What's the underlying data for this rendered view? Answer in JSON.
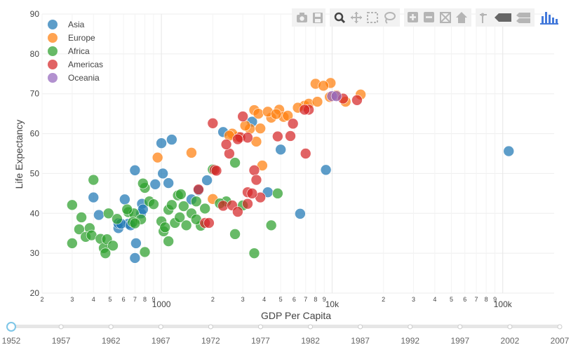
{
  "chart_data": {
    "type": "scatter",
    "xlabel": "GDP Per Capita",
    "ylabel": "Life Expectancy",
    "xscale": "log",
    "xlim": [
      200,
      200000
    ],
    "ylim": [
      20,
      90
    ],
    "grid": true,
    "legend_position": "top-left",
    "y_ticks": [
      "20",
      "30",
      "40",
      "50",
      "60",
      "70",
      "80",
      "90"
    ],
    "x_major_ticks": [
      {
        "value": 1000,
        "label": "1000"
      },
      {
        "value": 10000,
        "label": "10k"
      },
      {
        "value": 100000,
        "label": "100k"
      }
    ],
    "x_minor_ticks": [
      {
        "value": 200,
        "label": "2"
      },
      {
        "value": 300,
        "label": "3"
      },
      {
        "value": 400,
        "label": "4"
      },
      {
        "value": 500,
        "label": "5"
      },
      {
        "value": 600,
        "label": "6"
      },
      {
        "value": 700,
        "label": "7"
      },
      {
        "value": 800,
        "label": "8"
      },
      {
        "value": 900,
        "label": "9"
      },
      {
        "value": 2000,
        "label": "2"
      },
      {
        "value": 3000,
        "label": "3"
      },
      {
        "value": 4000,
        "label": "4"
      },
      {
        "value": 5000,
        "label": "5"
      },
      {
        "value": 6000,
        "label": "6"
      },
      {
        "value": 7000,
        "label": "7"
      },
      {
        "value": 8000,
        "label": "8"
      },
      {
        "value": 9000,
        "label": "9"
      },
      {
        "value": 20000,
        "label": "2"
      },
      {
        "value": 30000,
        "label": "3"
      },
      {
        "value": 40000,
        "label": "4"
      },
      {
        "value": 50000,
        "label": "5"
      },
      {
        "value": 60000,
        "label": "6"
      },
      {
        "value": 70000,
        "label": "7"
      },
      {
        "value": 80000,
        "label": "8"
      },
      {
        "value": 90000,
        "label": "9"
      }
    ],
    "series": [
      {
        "name": "Asia",
        "color": "#1f77b4",
        "points": [
          [
            108382,
            55.6
          ],
          [
            9200,
            50.9
          ],
          [
            3400,
            63.0
          ],
          [
            6500,
            39.9
          ],
          [
            4200,
            45.3
          ],
          [
            5000,
            56.0
          ],
          [
            2300,
            60.4
          ],
          [
            1850,
            48.3
          ],
          [
            1650,
            45.8
          ],
          [
            1500,
            43.5
          ],
          [
            1150,
            58.5
          ],
          [
            1000,
            57.6
          ],
          [
            1020,
            50.0
          ],
          [
            920,
            47.3
          ],
          [
            1100,
            47.6
          ],
          [
            700,
            50.8
          ],
          [
            610,
            43.5
          ],
          [
            760,
            40.0
          ],
          [
            560,
            36.3
          ],
          [
            560,
            37.5
          ],
          [
            430,
            39.6
          ],
          [
            400,
            44.0
          ],
          [
            700,
            28.8
          ],
          [
            710,
            32.5
          ],
          [
            770,
            42.4
          ],
          [
            640,
            37.4
          ],
          [
            780,
            41.0
          ],
          [
            580,
            37.4
          ],
          [
            660,
            37.0
          ]
        ]
      },
      {
        "name": "Europe",
        "color": "#ff7f0e",
        "points": [
          [
            9800,
            72.7
          ],
          [
            10600,
            69.6
          ],
          [
            14700,
            69.8
          ],
          [
            8000,
            72.5
          ],
          [
            8900,
            72.0
          ],
          [
            12000,
            68.0
          ],
          [
            6900,
            67.0
          ],
          [
            7300,
            67.5
          ],
          [
            6300,
            66.5
          ],
          [
            4400,
            64.0
          ],
          [
            4900,
            66.0
          ],
          [
            5200,
            64.2
          ],
          [
            3500,
            65.9
          ],
          [
            3700,
            65.0
          ],
          [
            4200,
            65.5
          ],
          [
            3300,
            61.2
          ],
          [
            3800,
            61.3
          ],
          [
            2800,
            59.2
          ],
          [
            2600,
            60.0
          ],
          [
            3600,
            58.0
          ],
          [
            1500,
            55.2
          ],
          [
            950,
            54.0
          ],
          [
            2000,
            43.6
          ],
          [
            3900,
            52.0
          ],
          [
            8200,
            68.0
          ],
          [
            5500,
            64.5
          ],
          [
            4700,
            64.9
          ],
          [
            9700,
            69.2
          ],
          [
            2500,
            59.5
          ],
          [
            3100,
            62.0
          ]
        ]
      },
      {
        "name": "Africa",
        "color": "#2ca02c",
        "points": [
          [
            300,
            42.1
          ],
          [
            300,
            32.5
          ],
          [
            340,
            39.0
          ],
          [
            380,
            36.3
          ],
          [
            400,
            48.4
          ],
          [
            330,
            36.0
          ],
          [
            360,
            34.1
          ],
          [
            390,
            34.5
          ],
          [
            440,
            33.6
          ],
          [
            460,
            31.3
          ],
          [
            480,
            33.5
          ],
          [
            470,
            30.0
          ],
          [
            520,
            31.9
          ],
          [
            490,
            40.0
          ],
          [
            550,
            38.6
          ],
          [
            640,
            40.3
          ],
          [
            690,
            40.0
          ],
          [
            760,
            38.5
          ],
          [
            800,
            46.4
          ],
          [
            850,
            43.0
          ],
          [
            900,
            42.3
          ],
          [
            800,
            30.3
          ],
          [
            1000,
            38.0
          ],
          [
            1030,
            35.5
          ],
          [
            1100,
            33.0
          ],
          [
            1200,
            37.6
          ],
          [
            1100,
            40.9
          ],
          [
            1150,
            42.1
          ],
          [
            1280,
            39.0
          ],
          [
            1350,
            41.8
          ],
          [
            1400,
            37.0
          ],
          [
            1500,
            40.0
          ],
          [
            1600,
            43.0
          ],
          [
            1800,
            41.2
          ],
          [
            2000,
            51.0
          ],
          [
            2400,
            43.0
          ],
          [
            2700,
            34.8
          ],
          [
            3000,
            42.0
          ],
          [
            3500,
            30.0
          ],
          [
            4400,
            37.0
          ],
          [
            4800,
            45.0
          ],
          [
            2700,
            52.7
          ],
          [
            680,
            37.8
          ],
          [
            700,
            37.5
          ],
          [
            1700,
            36.9
          ],
          [
            2200,
            42.5
          ],
          [
            1250,
            44.5
          ],
          [
            780,
            47.5
          ],
          [
            1050,
            36.5
          ],
          [
            1600,
            38.5
          ],
          [
            1300,
            44.8
          ],
          [
            630,
            41.0
          ]
        ]
      },
      {
        "name": "Americas",
        "color": "#d62728",
        "points": [
          [
            14000,
            68.4
          ],
          [
            11600,
            68.8
          ],
          [
            7000,
            55.0
          ],
          [
            7300,
            66.0
          ],
          [
            5900,
            62.5
          ],
          [
            5700,
            59.4
          ],
          [
            6900,
            66.0
          ],
          [
            3000,
            64.3
          ],
          [
            2900,
            59.1
          ],
          [
            3200,
            59.0
          ],
          [
            2800,
            58.6
          ],
          [
            2500,
            55.0
          ],
          [
            2400,
            57.3
          ],
          [
            2050,
            50.9
          ],
          [
            2000,
            62.6
          ],
          [
            2100,
            50.7
          ],
          [
            1800,
            37.6
          ],
          [
            1650,
            46.0
          ],
          [
            2300,
            41.9
          ],
          [
            2600,
            42.0
          ],
          [
            2800,
            40.4
          ],
          [
            3200,
            45.3
          ],
          [
            3200,
            42.4
          ],
          [
            3500,
            50.8
          ],
          [
            3600,
            48.4
          ],
          [
            3800,
            44.0
          ],
          [
            4800,
            59.3
          ],
          [
            3400,
            45.0
          ],
          [
            1900,
            37.6
          ]
        ]
      },
      {
        "name": "Oceania",
        "color": "#9467bd",
        "points": [
          [
            10000,
            69.4
          ],
          [
            10600,
            69.4
          ]
        ]
      }
    ]
  },
  "slider": {
    "years": [
      "1952",
      "1957",
      "1962",
      "1967",
      "1972",
      "1977",
      "1982",
      "1987",
      "1992",
      "1997",
      "2002",
      "2007"
    ],
    "active_index": 0
  },
  "modebar": {
    "icons": [
      "camera-icon",
      "save-icon",
      "zoom-icon",
      "pan-icon",
      "box-select-icon",
      "lasso-icon",
      "zoom-in-icon",
      "zoom-out-icon",
      "autoscale-icon",
      "home-icon",
      "spike-icon",
      "hover-closest-icon",
      "hover-compare-icon",
      "plotly-logo-icon"
    ]
  }
}
